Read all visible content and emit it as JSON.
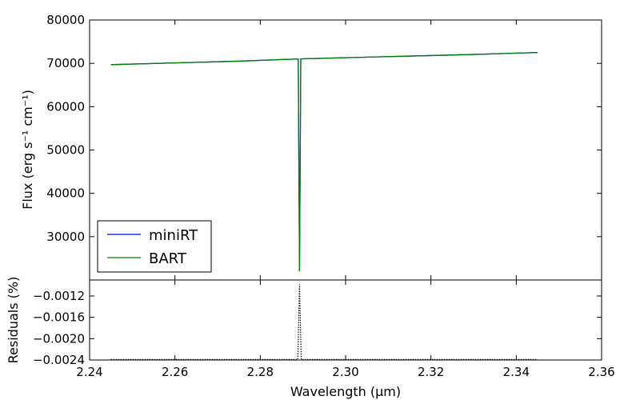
{
  "chart_data": [
    {
      "type": "line",
      "panel": "top",
      "ylabel": "Flux (erg s⁻¹ cm⁻¹)",
      "xlim": [
        2.24,
        2.36
      ],
      "ylim": [
        20000,
        80000
      ],
      "xticks": [
        2.24,
        2.26,
        2.28,
        2.3,
        2.32,
        2.34,
        2.36
      ],
      "yticks": [
        30000,
        40000,
        50000,
        60000,
        70000,
        80000
      ],
      "ytick_labels": [
        "30000",
        "40000",
        "50000",
        "60000",
        "70000",
        "80000"
      ],
      "grid": false,
      "legend": {
        "placement": "lower-left",
        "entries": [
          "miniRT",
          "BART"
        ]
      },
      "series": [
        {
          "name": "miniRT",
          "color": "#0000ff",
          "x": [
            2.245,
            2.26,
            2.275,
            2.2885,
            2.2889,
            2.2892,
            2.2895,
            2.29,
            2.3,
            2.31,
            2.32,
            2.33,
            2.345
          ],
          "y": [
            69700,
            70100,
            70500,
            71000,
            71000,
            22000,
            71000,
            71050,
            71300,
            71550,
            71800,
            72050,
            72500
          ]
        },
        {
          "name": "BART",
          "color": "#008000",
          "x": [
            2.245,
            2.26,
            2.275,
            2.2885,
            2.2889,
            2.2892,
            2.2895,
            2.29,
            2.3,
            2.31,
            2.32,
            2.33,
            2.345
          ],
          "y": [
            69700,
            70100,
            70500,
            71000,
            71000,
            22000,
            71000,
            71050,
            71300,
            71550,
            71800,
            72050,
            72500
          ]
        }
      ]
    },
    {
      "type": "line",
      "panel": "bottom",
      "xlabel": "Wavelength  (µm)",
      "ylabel": "Residuals (%)",
      "xlim": [
        2.24,
        2.36
      ],
      "ylim": [
        -0.0024,
        -0.0009
      ],
      "xticks": [
        2.24,
        2.26,
        2.28,
        2.3,
        2.32,
        2.34,
        2.36
      ],
      "xtick_labels": [
        "2.24",
        "2.26",
        "2.28",
        "2.30",
        "2.32",
        "2.34",
        "2.36"
      ],
      "yticks": [
        -0.0024,
        -0.002,
        -0.0016,
        -0.0012
      ],
      "ytick_labels": [
        "−0.0024",
        "−0.0020",
        "−0.0016",
        "−0.0012"
      ],
      "grid": false,
      "series": [
        {
          "style": "dotted",
          "color": "#000000",
          "x": [
            2.245,
            2.2888,
            2.2892,
            2.2896,
            2.345
          ],
          "y": [
            -0.00239,
            -0.00239,
            -0.00098,
            -0.00239,
            -0.00239
          ]
        }
      ]
    }
  ]
}
